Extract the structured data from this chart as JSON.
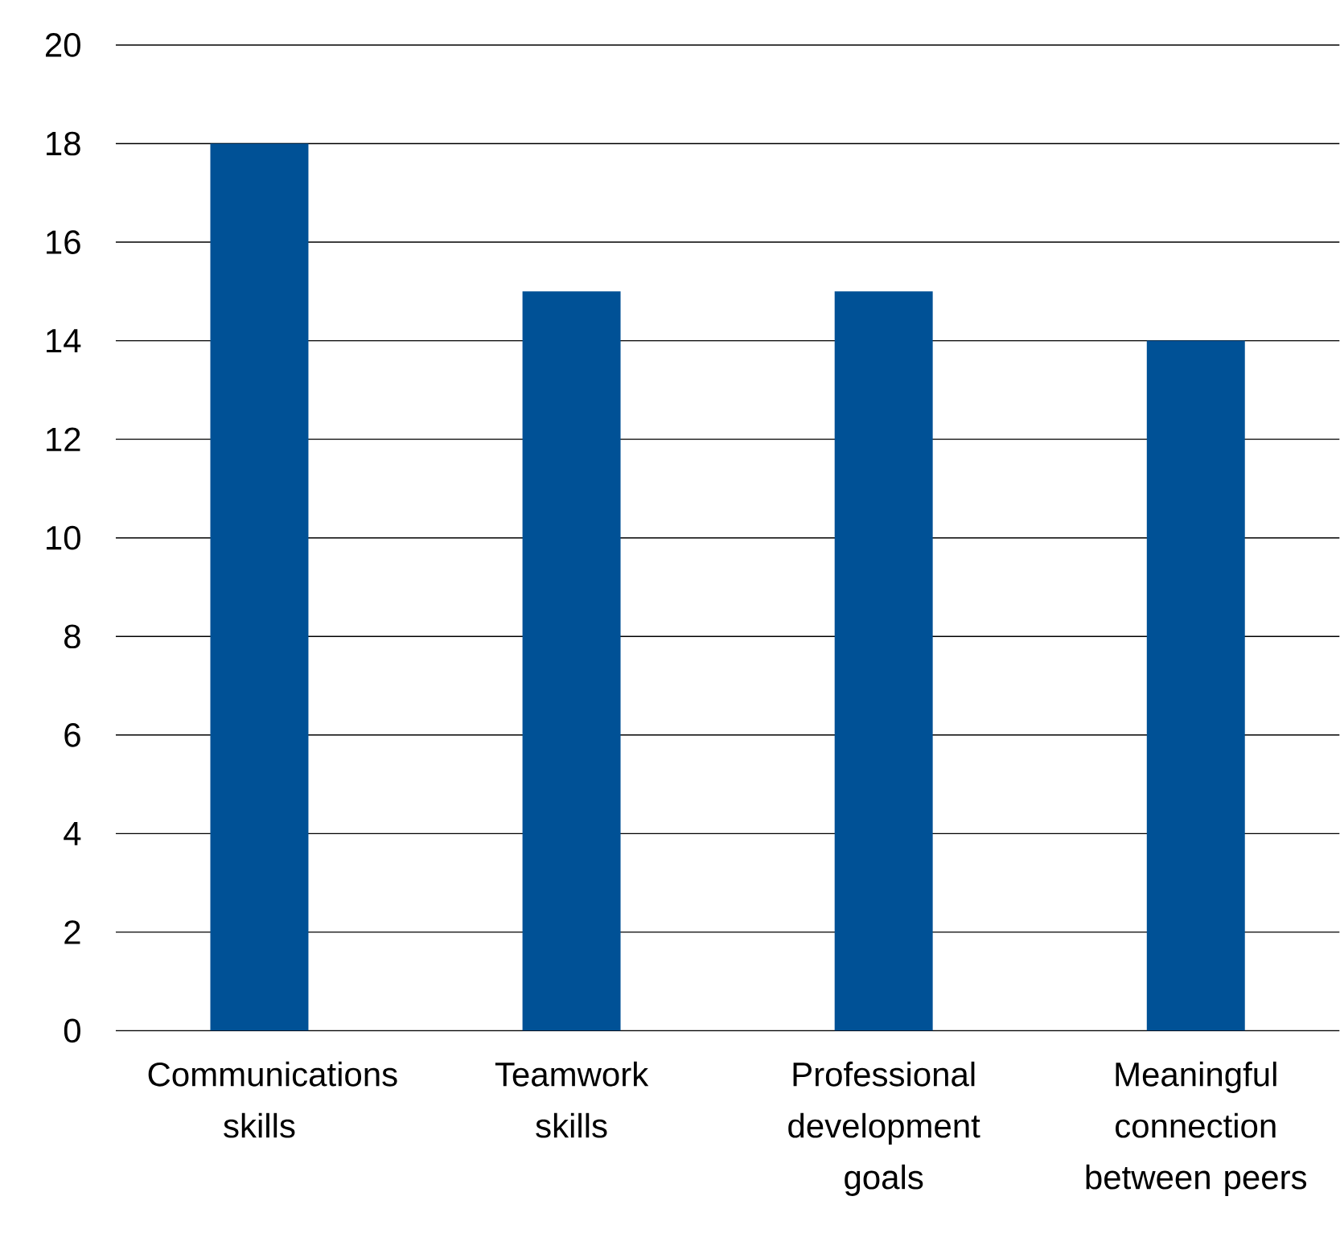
{
  "chart_data": {
    "type": "bar",
    "categories": [
      "Communications skills",
      "Teamwork skills",
      "Professional development goals",
      "Meaningful connection between peers"
    ],
    "values": [
      18,
      15,
      15,
      14
    ],
    "color": "#005196",
    "ylim": [
      0,
      20
    ],
    "yticks": [
      0,
      2,
      4,
      6,
      8,
      10,
      12,
      14,
      16,
      18,
      20
    ],
    "grid": "y"
  }
}
